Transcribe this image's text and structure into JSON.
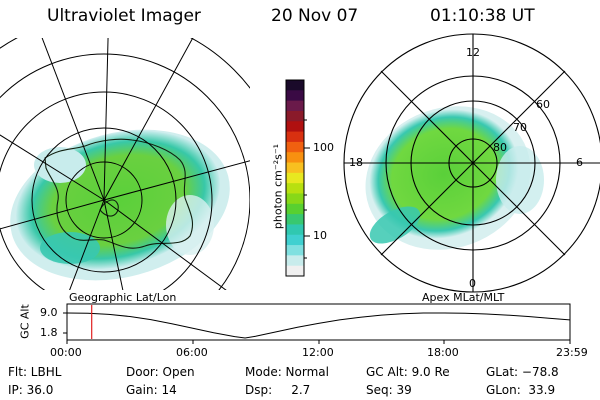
{
  "header": {
    "instrument": "Ultraviolet Imager",
    "date": "20 Nov 07",
    "time": "01:10:38 UT"
  },
  "left_map": {
    "label": "Geographic Lat/Lon"
  },
  "right_map": {
    "label": "Apex MLat/MLT",
    "mlt_labels": {
      "top": "12",
      "left": "18",
      "right": "6",
      "bottom": "0"
    },
    "lat_labels": [
      "60",
      "70",
      "80"
    ]
  },
  "colorbar": {
    "unit_label": "photon cm⁻²s⁻¹",
    "ticks": [
      "100",
      "10"
    ],
    "colors": [
      "#1a0a2a",
      "#3a0a44",
      "#6a1a4a",
      "#8a1a2a",
      "#b01010",
      "#d83010",
      "#f06010",
      "#f89010",
      "#f8c020",
      "#e8e820",
      "#b8e010",
      "#88d818",
      "#58d030",
      "#38c870",
      "#30c8b0",
      "#40d0d0",
      "#80e0e0",
      "#c8ecec",
      "#f0f0f0"
    ]
  },
  "timeline": {
    "ylabel": "GC Alt",
    "yticks": [
      "9.0",
      "1.8"
    ],
    "xticks": [
      "00:00",
      "06:00",
      "12:00",
      "18:00",
      "23:59"
    ],
    "current_time_hours": 1.18,
    "altitude_min": 1.8,
    "altitude_max": 9.0,
    "curve": [
      [
        0,
        9.0
      ],
      [
        1,
        8.9
      ],
      [
        2,
        8.6
      ],
      [
        3,
        8.0
      ],
      [
        4,
        7.1
      ],
      [
        5,
        5.9
      ],
      [
        6,
        4.6
      ],
      [
        7,
        3.3
      ],
      [
        8,
        2.2
      ],
      [
        8.5,
        1.8
      ],
      [
        9,
        2.3
      ],
      [
        10,
        3.6
      ],
      [
        11,
        4.9
      ],
      [
        12,
        6.0
      ],
      [
        13,
        7.0
      ],
      [
        14,
        7.8
      ],
      [
        15,
        8.4
      ],
      [
        16,
        8.8
      ],
      [
        17,
        9.0
      ],
      [
        18,
        9.0
      ],
      [
        19,
        8.9
      ],
      [
        20,
        8.7
      ],
      [
        21,
        8.4
      ],
      [
        22,
        8.0
      ],
      [
        23,
        7.5
      ],
      [
        23.98,
        7.0
      ]
    ]
  },
  "info": {
    "flt": "Flt: LBHL",
    "ip": "IP: 36.0",
    "door": "Door: Open",
    "gain": "Gain: 14",
    "mode": "Mode: Normal",
    "dsp": "Dsp:     2.7",
    "gcalt": "GC Alt: 9.0 Re",
    "seq": "Seq: 39",
    "glat": "GLat: −78.8",
    "glon": "GLon:  33.9"
  }
}
